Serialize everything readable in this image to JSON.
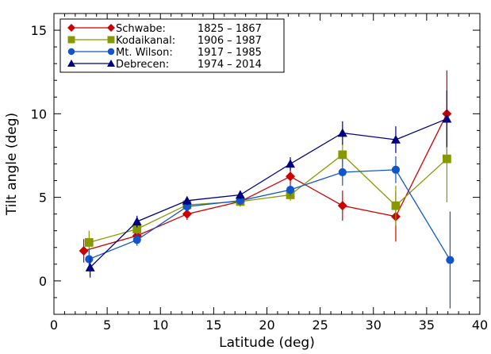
{
  "chart_data": {
    "type": "line",
    "xlabel": "Latitude (deg)",
    "ylabel": "Tilt angle (deg)",
    "xlim": [
      0,
      40
    ],
    "ylim": [
      -2,
      16
    ],
    "xticks": [
      0,
      5,
      10,
      15,
      20,
      25,
      30,
      35,
      40
    ],
    "yticks": [
      0,
      5,
      10,
      15
    ],
    "grid": false,
    "legend": {
      "placement": "top-left"
    },
    "series": [
      {
        "name": "Schwabe:",
        "period": "1825 – 1867",
        "color": "#cc0000",
        "marker": "diamond",
        "points": [
          {
            "x": 2.8,
            "y": 1.8,
            "err": 0.7
          },
          {
            "x": 7.8,
            "y": 2.7,
            "err": 0.4
          },
          {
            "x": 12.5,
            "y": 4.0,
            "err": 0.35
          },
          {
            "x": 17.5,
            "y": 4.75,
            "err": 0.3
          },
          {
            "x": 22.2,
            "y": 6.25,
            "err": 0.5
          },
          {
            "x": 27.1,
            "y": 4.5,
            "err": 0.9
          },
          {
            "x": 32.1,
            "y": 3.85,
            "err": 1.5
          },
          {
            "x": 36.9,
            "y": 10.0,
            "err": 2.6
          }
        ]
      },
      {
        "name": "Kodaikanal:",
        "period": "1906 – 1987",
        "color": "#889900",
        "marker": "square",
        "points": [
          {
            "x": 3.3,
            "y": 2.3,
            "err": 0.7
          },
          {
            "x": 7.8,
            "y": 3.1,
            "err": 0.35
          },
          {
            "x": 12.5,
            "y": 4.55,
            "err": 0.25
          },
          {
            "x": 17.5,
            "y": 4.75,
            "err": 0.25
          },
          {
            "x": 22.2,
            "y": 5.15,
            "err": 0.35
          },
          {
            "x": 27.1,
            "y": 7.55,
            "err": 0.7
          },
          {
            "x": 32.1,
            "y": 4.5,
            "err": 1.2
          },
          {
            "x": 36.9,
            "y": 7.3,
            "err": 2.6
          }
        ]
      },
      {
        "name": "Mt. Wilson:",
        "period": "1917 – 1985",
        "color": "#1155cc",
        "marker": "circle",
        "points": [
          {
            "x": 3.3,
            "y": 1.3,
            "err": 0.6
          },
          {
            "x": 7.8,
            "y": 2.45,
            "err": 0.35
          },
          {
            "x": 12.5,
            "y": 4.45,
            "err": 0.25
          },
          {
            "x": 17.5,
            "y": 4.8,
            "err": 0.25
          },
          {
            "x": 22.2,
            "y": 5.45,
            "err": 0.35
          },
          {
            "x": 27.1,
            "y": 6.5,
            "err": 0.8
          },
          {
            "x": 32.1,
            "y": 6.65,
            "err": 0.8
          },
          {
            "x": 37.2,
            "y": 1.25,
            "err": 2.9
          }
        ]
      },
      {
        "name": "Debrecen:",
        "period": "1974 – 2014",
        "color": "#000080",
        "marker": "triangle",
        "points": [
          {
            "x": 3.4,
            "y": 0.8,
            "err": 0.6
          },
          {
            "x": 7.8,
            "y": 3.55,
            "err": 0.35
          },
          {
            "x": 12.5,
            "y": 4.8,
            "err": 0.25
          },
          {
            "x": 17.5,
            "y": 5.15,
            "err": 0.25
          },
          {
            "x": 22.2,
            "y": 7.0,
            "err": 0.4
          },
          {
            "x": 27.1,
            "y": 8.85,
            "err": 0.7
          },
          {
            "x": 32.1,
            "y": 8.45,
            "err": 0.8
          },
          {
            "x": 36.9,
            "y": 9.7,
            "err": 1.7
          }
        ]
      }
    ]
  }
}
